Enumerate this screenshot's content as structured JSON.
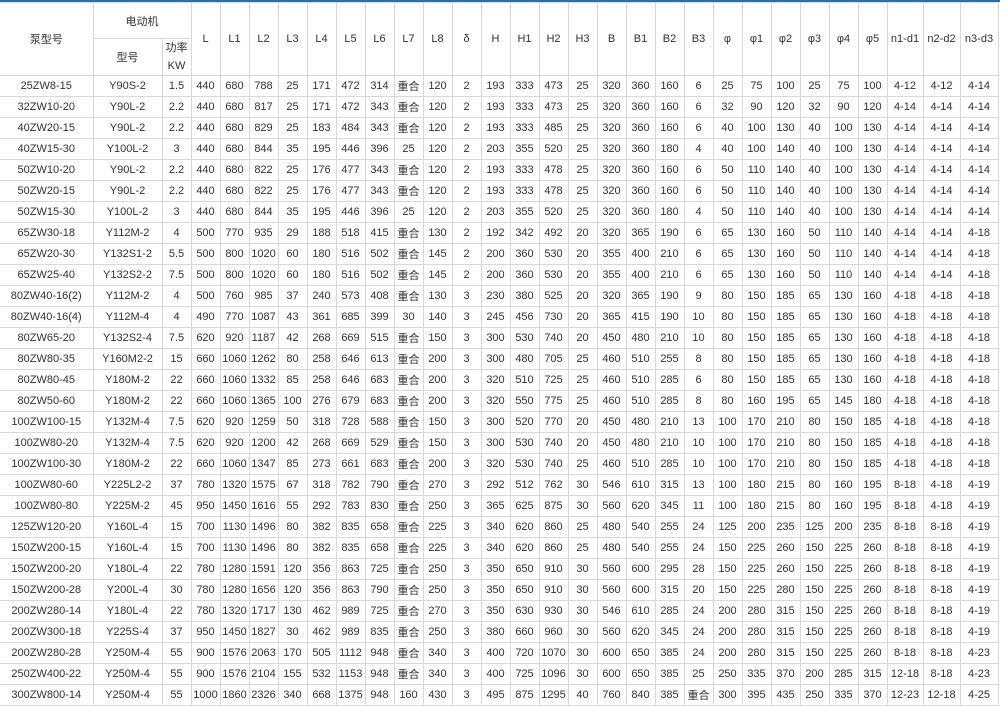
{
  "header": {
    "pump_model": "泵型号",
    "motor": "电动机",
    "motor_model": "型号",
    "power_label": "功率",
    "power_unit": "KW",
    "dims": [
      "L",
      "L1",
      "L2",
      "L3",
      "L4",
      "L5",
      "L6",
      "L7",
      "L8",
      "δ",
      "H",
      "H1",
      "H2",
      "H3",
      "B",
      "B1",
      "B2",
      "B3",
      "φ",
      "φ1",
      "φ2",
      "φ3",
      "φ4",
      "φ5",
      "n1-d1",
      "n2-d2",
      "n3-d3"
    ]
  },
  "rows": [
    [
      "25ZW8-15",
      "Y90S-2",
      "1.5",
      "440",
      "680",
      "788",
      "25",
      "171",
      "472",
      "314",
      "重合",
      "120",
      "2",
      "193",
      "333",
      "473",
      "25",
      "320",
      "360",
      "160",
      "6",
      "25",
      "75",
      "100",
      "25",
      "75",
      "100",
      "4-12",
      "4-12",
      "4-14"
    ],
    [
      "32ZW10-20",
      "Y90L-2",
      "2.2",
      "440",
      "680",
      "817",
      "25",
      "171",
      "472",
      "343",
      "重合",
      "120",
      "2",
      "193",
      "333",
      "473",
      "25",
      "320",
      "360",
      "160",
      "6",
      "32",
      "90",
      "120",
      "32",
      "90",
      "120",
      "4-14",
      "4-14",
      "4-14"
    ],
    [
      "40ZW20-15",
      "Y90L-2",
      "2.2",
      "440",
      "680",
      "829",
      "25",
      "183",
      "484",
      "343",
      "重合",
      "120",
      "2",
      "193",
      "333",
      "485",
      "25",
      "320",
      "360",
      "160",
      "6",
      "40",
      "100",
      "130",
      "40",
      "100",
      "130",
      "4-14",
      "4-14",
      "4-14"
    ],
    [
      "40ZW15-30",
      "Y100L-2",
      "3",
      "440",
      "680",
      "844",
      "35",
      "195",
      "446",
      "396",
      "25",
      "120",
      "2",
      "203",
      "355",
      "520",
      "25",
      "320",
      "360",
      "180",
      "4",
      "40",
      "100",
      "140",
      "40",
      "100",
      "130",
      "4-14",
      "4-14",
      "4-14"
    ],
    [
      "50ZW10-20",
      "Y90L-2",
      "2.2",
      "440",
      "680",
      "822",
      "25",
      "176",
      "477",
      "343",
      "重合",
      "120",
      "2",
      "193",
      "333",
      "478",
      "25",
      "320",
      "360",
      "160",
      "6",
      "50",
      "110",
      "140",
      "40",
      "100",
      "130",
      "4-14",
      "4-14",
      "4-14"
    ],
    [
      "50ZW20-15",
      "Y90L-2",
      "2.2",
      "440",
      "680",
      "822",
      "25",
      "176",
      "477",
      "343",
      "重合",
      "120",
      "2",
      "193",
      "333",
      "478",
      "25",
      "320",
      "360",
      "160",
      "6",
      "50",
      "110",
      "140",
      "40",
      "100",
      "130",
      "4-14",
      "4-14",
      "4-14"
    ],
    [
      "50ZW15-30",
      "Y100L-2",
      "3",
      "440",
      "680",
      "844",
      "35",
      "195",
      "446",
      "396",
      "25",
      "120",
      "2",
      "203",
      "355",
      "520",
      "25",
      "320",
      "360",
      "180",
      "4",
      "50",
      "110",
      "140",
      "40",
      "100",
      "130",
      "4-14",
      "4-14",
      "4-14"
    ],
    [
      "65ZW30-18",
      "Y112M-2",
      "4",
      "500",
      "770",
      "935",
      "29",
      "188",
      "518",
      "415",
      "重合",
      "130",
      "2",
      "192",
      "342",
      "492",
      "20",
      "320",
      "365",
      "190",
      "6",
      "65",
      "130",
      "160",
      "50",
      "110",
      "140",
      "4-14",
      "4-14",
      "4-18"
    ],
    [
      "65ZW20-30",
      "Y132S1-2",
      "5.5",
      "500",
      "800",
      "1020",
      "60",
      "180",
      "516",
      "502",
      "重合",
      "145",
      "2",
      "200",
      "360",
      "530",
      "20",
      "355",
      "400",
      "210",
      "6",
      "65",
      "130",
      "160",
      "50",
      "110",
      "140",
      "4-14",
      "4-14",
      "4-18"
    ],
    [
      "65ZW25-40",
      "Y132S2-2",
      "7.5",
      "500",
      "800",
      "1020",
      "60",
      "180",
      "516",
      "502",
      "重合",
      "145",
      "2",
      "200",
      "360",
      "530",
      "20",
      "355",
      "400",
      "210",
      "6",
      "65",
      "130",
      "160",
      "50",
      "110",
      "140",
      "4-14",
      "4-14",
      "4-18"
    ],
    [
      "80ZW40-16(2)",
      "Y112M-2",
      "4",
      "500",
      "760",
      "985",
      "37",
      "240",
      "573",
      "408",
      "重合",
      "130",
      "3",
      "230",
      "380",
      "525",
      "20",
      "320",
      "365",
      "190",
      "9",
      "80",
      "150",
      "185",
      "65",
      "130",
      "160",
      "4-18",
      "4-18",
      "4-18"
    ],
    [
      "80ZW40-16(4)",
      "Y112M-4",
      "4",
      "490",
      "770",
      "1087",
      "43",
      "361",
      "685",
      "399",
      "30",
      "140",
      "3",
      "245",
      "456",
      "730",
      "20",
      "365",
      "415",
      "190",
      "10",
      "80",
      "150",
      "185",
      "65",
      "130",
      "160",
      "4-18",
      "4-18",
      "4-18"
    ],
    [
      "80ZW65-20",
      "Y132S2-4",
      "7.5",
      "620",
      "920",
      "1187",
      "42",
      "268",
      "669",
      "515",
      "重合",
      "150",
      "3",
      "300",
      "530",
      "740",
      "20",
      "450",
      "480",
      "210",
      "10",
      "80",
      "150",
      "185",
      "65",
      "130",
      "160",
      "4-18",
      "4-18",
      "4-18"
    ],
    [
      "80ZW80-35",
      "Y160M2-2",
      "15",
      "660",
      "1060",
      "1262",
      "80",
      "258",
      "646",
      "613",
      "重合",
      "200",
      "3",
      "300",
      "480",
      "705",
      "25",
      "460",
      "510",
      "255",
      "8",
      "80",
      "150",
      "185",
      "65",
      "130",
      "160",
      "4-18",
      "4-18",
      "4-18"
    ],
    [
      "80ZW80-45",
      "Y180M-2",
      "22",
      "660",
      "1060",
      "1332",
      "85",
      "258",
      "646",
      "683",
      "重合",
      "200",
      "3",
      "320",
      "510",
      "725",
      "25",
      "460",
      "510",
      "285",
      "6",
      "80",
      "150",
      "185",
      "65",
      "130",
      "160",
      "4-18",
      "4-18",
      "4-18"
    ],
    [
      "80ZW50-60",
      "Y180M-2",
      "22",
      "660",
      "1060",
      "1365",
      "100",
      "276",
      "679",
      "683",
      "重合",
      "200",
      "3",
      "320",
      "550",
      "775",
      "25",
      "460",
      "510",
      "285",
      "8",
      "80",
      "160",
      "195",
      "65",
      "145",
      "180",
      "4-18",
      "4-18",
      "4-18"
    ],
    [
      "100ZW100-15",
      "Y132M-4",
      "7.5",
      "620",
      "920",
      "1259",
      "50",
      "318",
      "728",
      "588",
      "重合",
      "150",
      "3",
      "300",
      "520",
      "770",
      "20",
      "450",
      "480",
      "210",
      "13",
      "100",
      "170",
      "210",
      "80",
      "150",
      "185",
      "4-18",
      "4-18",
      "4-18"
    ],
    [
      "100ZW80-20",
      "Y132M-4",
      "7.5",
      "620",
      "920",
      "1200",
      "42",
      "268",
      "669",
      "529",
      "重合",
      "150",
      "3",
      "300",
      "530",
      "740",
      "20",
      "450",
      "480",
      "210",
      "10",
      "100",
      "170",
      "210",
      "80",
      "150",
      "185",
      "4-18",
      "4-18",
      "4-18"
    ],
    [
      "100ZW100-30",
      "Y180M-2",
      "22",
      "660",
      "1060",
      "1347",
      "85",
      "273",
      "661",
      "683",
      "重合",
      "200",
      "3",
      "320",
      "530",
      "740",
      "25",
      "460",
      "510",
      "285",
      "10",
      "100",
      "170",
      "210",
      "80",
      "150",
      "185",
      "4-18",
      "4-18",
      "4-18"
    ],
    [
      "100ZW80-60",
      "Y225L2-2",
      "37",
      "780",
      "1320",
      "1575",
      "67",
      "318",
      "782",
      "790",
      "重合",
      "270",
      "3",
      "292",
      "512",
      "762",
      "30",
      "546",
      "610",
      "315",
      "13",
      "100",
      "180",
      "215",
      "80",
      "160",
      "195",
      "8-18",
      "4-18",
      "4-19"
    ],
    [
      "100ZW80-80",
      "Y225M-2",
      "45",
      "950",
      "1450",
      "1616",
      "55",
      "292",
      "783",
      "830",
      "重合",
      "250",
      "3",
      "365",
      "625",
      "875",
      "30",
      "560",
      "620",
      "345",
      "11",
      "100",
      "180",
      "215",
      "80",
      "160",
      "195",
      "8-18",
      "4-18",
      "4-19"
    ],
    [
      "125ZW120-20",
      "Y160L-4",
      "15",
      "700",
      "1130",
      "1496",
      "80",
      "382",
      "835",
      "658",
      "重合",
      "225",
      "3",
      "340",
      "620",
      "860",
      "25",
      "480",
      "540",
      "255",
      "24",
      "125",
      "200",
      "235",
      "125",
      "200",
      "235",
      "8-18",
      "8-18",
      "4-19"
    ],
    [
      "150ZW200-15",
      "Y160L-4",
      "15",
      "700",
      "1130",
      "1496",
      "80",
      "382",
      "835",
      "658",
      "重合",
      "225",
      "3",
      "340",
      "620",
      "860",
      "25",
      "480",
      "540",
      "255",
      "24",
      "150",
      "225",
      "260",
      "150",
      "225",
      "260",
      "8-18",
      "8-18",
      "4-19"
    ],
    [
      "150ZW200-20",
      "Y180L-4",
      "22",
      "780",
      "1280",
      "1591",
      "120",
      "356",
      "863",
      "725",
      "重合",
      "250",
      "3",
      "350",
      "650",
      "910",
      "30",
      "560",
      "600",
      "295",
      "28",
      "150",
      "225",
      "260",
      "150",
      "225",
      "260",
      "8-18",
      "8-18",
      "4-19"
    ],
    [
      "150ZW200-28",
      "Y200L-4",
      "30",
      "780",
      "1280",
      "1656",
      "120",
      "356",
      "863",
      "790",
      "重合",
      "250",
      "3",
      "350",
      "650",
      "910",
      "30",
      "560",
      "600",
      "315",
      "20",
      "150",
      "225",
      "280",
      "150",
      "225",
      "260",
      "8-18",
      "8-18",
      "4-19"
    ],
    [
      "200ZW280-14",
      "Y180L-4",
      "22",
      "780",
      "1320",
      "1717",
      "130",
      "462",
      "989",
      "725",
      "重合",
      "270",
      "3",
      "350",
      "630",
      "930",
      "30",
      "546",
      "610",
      "285",
      "24",
      "200",
      "280",
      "315",
      "150",
      "225",
      "260",
      "8-18",
      "8-18",
      "4-19"
    ],
    [
      "200ZW300-18",
      "Y225S-4",
      "37",
      "950",
      "1450",
      "1827",
      "30",
      "462",
      "989",
      "835",
      "重合",
      "250",
      "3",
      "380",
      "660",
      "960",
      "30",
      "560",
      "620",
      "345",
      "24",
      "200",
      "280",
      "315",
      "150",
      "225",
      "260",
      "8-18",
      "8-18",
      "4-19"
    ],
    [
      "200ZW280-28",
      "Y250M-4",
      "55",
      "900",
      "1576",
      "2063",
      "170",
      "505",
      "1112",
      "948",
      "重合",
      "340",
      "3",
      "400",
      "720",
      "1070",
      "30",
      "600",
      "650",
      "385",
      "24",
      "200",
      "280",
      "315",
      "150",
      "225",
      "260",
      "8-18",
      "8-18",
      "4-23"
    ],
    [
      "250ZW400-22",
      "Y250M-4",
      "55",
      "900",
      "1576",
      "2104",
      "155",
      "532",
      "1153",
      "948",
      "重合",
      "340",
      "3",
      "400",
      "725",
      "1096",
      "30",
      "600",
      "650",
      "385",
      "25",
      "250",
      "335",
      "370",
      "200",
      "285",
      "315",
      "12-18",
      "8-18",
      "4-23"
    ],
    [
      "300ZW800-14",
      "Y250M-4",
      "55",
      "1000",
      "1860",
      "2326",
      "340",
      "668",
      "1375",
      "948",
      "160",
      "430",
      "3",
      "495",
      "875",
      "1295",
      "40",
      "760",
      "840",
      "385",
      "重合",
      "300",
      "395",
      "435",
      "250",
      "335",
      "370",
      "12-23",
      "12-18",
      "4-25"
    ]
  ],
  "colors": {
    "top_border": "#2f6db3",
    "grid": "#d9d9d9",
    "text": "#333333"
  }
}
